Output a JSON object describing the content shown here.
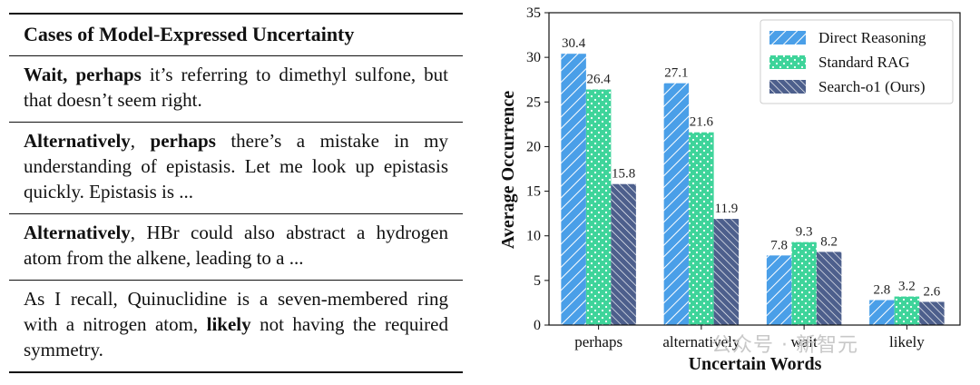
{
  "table": {
    "title": "Cases of Model-Expressed Uncertainty",
    "cases": [
      {
        "segments": [
          {
            "t": "Wait, perhaps",
            "b": true
          },
          {
            "t": " it’s referring to dimethyl sulfone, but that doesn’t seem right.",
            "b": false
          }
        ]
      },
      {
        "segments": [
          {
            "t": "Alternatively",
            "b": true
          },
          {
            "t": ", ",
            "b": false
          },
          {
            "t": "perhaps",
            "b": true
          },
          {
            "t": " there’s a mistake in my understanding of epistasis. Let me look up epis­tasis quickly. Epistasis is ...",
            "b": false
          }
        ]
      },
      {
        "segments": [
          {
            "t": "Alternatively",
            "b": true
          },
          {
            "t": ", HBr could also abstract a hydro­gen atom from the alkene, leading to a ...",
            "b": false
          }
        ]
      },
      {
        "segments": [
          {
            "t": "As I recall, Quinuclidine is a seven-membered ring with a nitrogen atom, ",
            "b": false
          },
          {
            "t": "likely",
            "b": true
          },
          {
            "t": " not having the required symmetry.",
            "b": false
          }
        ]
      }
    ]
  },
  "chart_data": {
    "type": "bar",
    "categories": [
      "perhaps",
      "alternatively",
      "wait",
      "likely"
    ],
    "series": [
      {
        "name": "Direct Reasoning",
        "values": [
          30.4,
          27.1,
          7.8,
          2.8
        ],
        "color": "#4a9fe8",
        "hatch": "diagonal"
      },
      {
        "name": "Standard RAG",
        "values": [
          26.4,
          21.6,
          9.3,
          3.2
        ],
        "color": "#3ed49a",
        "hatch": "dots"
      },
      {
        "name": "Search-o1 (Ours)",
        "values": [
          15.8,
          11.9,
          8.2,
          2.6
        ],
        "color": "#4d5f8c",
        "hatch": "diagonal-dense"
      }
    ],
    "value_labels": [
      [
        "30.4",
        "26.4",
        "15.8"
      ],
      [
        "27.1",
        "21.6",
        "11.9"
      ],
      [
        "7.8",
        "9.3",
        "8.2"
      ],
      [
        "2.8",
        "3.2",
        "2.6"
      ]
    ],
    "xlabel": "Uncertain Words",
    "ylabel": "Average Occurrence",
    "ylim": [
      0,
      35
    ],
    "yticks": [
      "0",
      "5",
      "10",
      "15",
      "20",
      "25",
      "30",
      "35"
    ],
    "legend_position": "top-right",
    "grid": false
  },
  "watermark": "公众号 · 新智元"
}
